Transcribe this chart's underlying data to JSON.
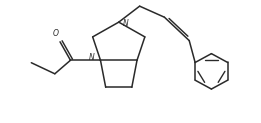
{
  "bg_color": "#ffffff",
  "line_color": "#2a2a2a",
  "line_width": 1.1,
  "fig_width": 2.61,
  "fig_height": 1.23,
  "dpi": 100,
  "xlim": [
    0,
    10
  ],
  "ylim": [
    0,
    5
  ]
}
